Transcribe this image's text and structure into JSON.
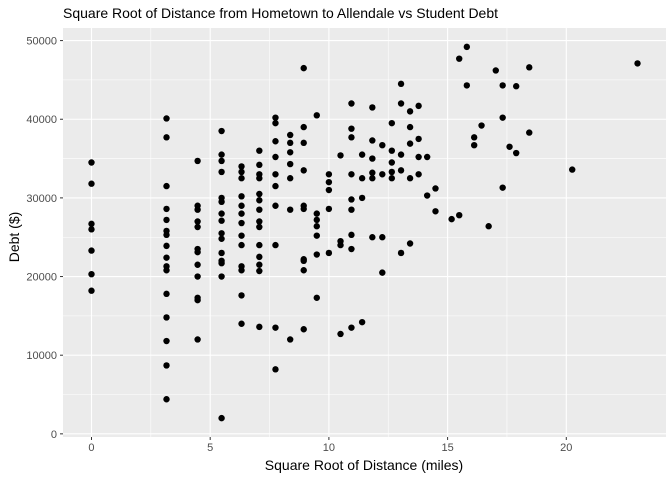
{
  "chart_data": {
    "type": "scatter",
    "title": "Square Root of Distance from Hometown to Allendale vs Student Debt",
    "xlabel": "Square Root of Distance (miles)",
    "ylabel": "Debt ($)",
    "xlim": [
      -1.2,
      24.2
    ],
    "ylim": [
      -400,
      51600
    ],
    "x_ticks": [
      0,
      5,
      10,
      15,
      20
    ],
    "x_tick_labels": [
      "0",
      "5",
      "10",
      "15",
      "20"
    ],
    "y_ticks": [
      0,
      10000,
      20000,
      30000,
      40000,
      50000
    ],
    "y_tick_labels": [
      "0",
      "10000",
      "20000",
      "30000",
      "40000",
      "50000"
    ],
    "grid": true,
    "colors": {
      "panel": "#ebebeb",
      "grid_major": "#ffffff",
      "point": "#000000",
      "tick_text": "#4d4d4d"
    },
    "points": [
      [
        0,
        34500
      ],
      [
        0,
        31800
      ],
      [
        0,
        26700
      ],
      [
        0,
        26000
      ],
      [
        0,
        23300
      ],
      [
        0,
        20300
      ],
      [
        0,
        18200
      ],
      [
        3.16,
        40100
      ],
      [
        3.16,
        37700
      ],
      [
        3.16,
        31500
      ],
      [
        3.16,
        28600
      ],
      [
        3.16,
        27200
      ],
      [
        3.16,
        25800
      ],
      [
        3.16,
        25300
      ],
      [
        3.16,
        23900
      ],
      [
        3.16,
        22400
      ],
      [
        3.16,
        21300
      ],
      [
        3.16,
        20800
      ],
      [
        3.16,
        17800
      ],
      [
        3.16,
        14800
      ],
      [
        3.16,
        11800
      ],
      [
        3.16,
        8700
      ],
      [
        3.16,
        4400
      ],
      [
        4.47,
        34700
      ],
      [
        4.47,
        29000
      ],
      [
        4.47,
        28500
      ],
      [
        4.47,
        27000
      ],
      [
        4.47,
        26300
      ],
      [
        4.47,
        23500
      ],
      [
        4.47,
        23100
      ],
      [
        4.47,
        21500
      ],
      [
        4.47,
        20000
      ],
      [
        4.47,
        17300
      ],
      [
        4.47,
        17000
      ],
      [
        4.47,
        12000
      ],
      [
        5.48,
        38500
      ],
      [
        5.48,
        35500
      ],
      [
        5.48,
        34700
      ],
      [
        5.48,
        33300
      ],
      [
        5.48,
        30000
      ],
      [
        5.48,
        29500
      ],
      [
        5.48,
        28000
      ],
      [
        5.48,
        27100
      ],
      [
        5.48,
        25500
      ],
      [
        5.48,
        24800
      ],
      [
        5.48,
        23000
      ],
      [
        5.48,
        22000
      ],
      [
        5.48,
        21700
      ],
      [
        5.48,
        20000
      ],
      [
        5.48,
        2000
      ],
      [
        6.32,
        34000
      ],
      [
        6.32,
        33300
      ],
      [
        6.32,
        32500
      ],
      [
        6.32,
        30200
      ],
      [
        6.32,
        29000
      ],
      [
        6.32,
        28000
      ],
      [
        6.32,
        26800
      ],
      [
        6.32,
        25200
      ],
      [
        6.32,
        24000
      ],
      [
        6.32,
        21300
      ],
      [
        6.32,
        20800
      ],
      [
        6.32,
        17600
      ],
      [
        6.32,
        14000
      ],
      [
        7.07,
        36000
      ],
      [
        7.07,
        34200
      ],
      [
        7.07,
        33000
      ],
      [
        7.07,
        32500
      ],
      [
        7.07,
        30500
      ],
      [
        7.07,
        29700
      ],
      [
        7.07,
        28500
      ],
      [
        7.07,
        27000
      ],
      [
        7.07,
        26300
      ],
      [
        7.07,
        24000
      ],
      [
        7.07,
        22500
      ],
      [
        7.07,
        21500
      ],
      [
        7.07,
        20700
      ],
      [
        7.07,
        13600
      ],
      [
        7.75,
        40200
      ],
      [
        7.75,
        39500
      ],
      [
        7.75,
        37200
      ],
      [
        7.75,
        35200
      ],
      [
        7.75,
        33000
      ],
      [
        7.75,
        31500
      ],
      [
        7.75,
        29000
      ],
      [
        7.75,
        24000
      ],
      [
        7.75,
        13500
      ],
      [
        7.75,
        8200
      ],
      [
        8.37,
        38000
      ],
      [
        8.37,
        37000
      ],
      [
        8.37,
        35800
      ],
      [
        8.37,
        34300
      ],
      [
        8.37,
        32500
      ],
      [
        8.37,
        28500
      ],
      [
        8.37,
        12000
      ],
      [
        8.94,
        46500
      ],
      [
        8.94,
        39000
      ],
      [
        8.94,
        37000
      ],
      [
        8.94,
        33500
      ],
      [
        8.94,
        29000
      ],
      [
        8.94,
        28600
      ],
      [
        8.94,
        22200
      ],
      [
        8.94,
        22000
      ],
      [
        8.94,
        20800
      ],
      [
        8.94,
        13300
      ],
      [
        9.49,
        40500
      ],
      [
        9.49,
        28000
      ],
      [
        9.49,
        27200
      ],
      [
        9.49,
        26400
      ],
      [
        9.49,
        25200
      ],
      [
        9.49,
        22800
      ],
      [
        9.49,
        17300
      ],
      [
        10,
        33000
      ],
      [
        10,
        32000
      ],
      [
        10,
        31000
      ],
      [
        10,
        28600
      ],
      [
        10,
        23000
      ],
      [
        10.49,
        35400
      ],
      [
        10.49,
        24500
      ],
      [
        10.49,
        24000
      ],
      [
        10.49,
        12700
      ],
      [
        10.95,
        42000
      ],
      [
        10.95,
        38800
      ],
      [
        10.95,
        37700
      ],
      [
        10.95,
        33000
      ],
      [
        10.95,
        29800
      ],
      [
        10.95,
        28500
      ],
      [
        10.95,
        25300
      ],
      [
        10.95,
        23500
      ],
      [
        10.95,
        13500
      ],
      [
        11.4,
        35500
      ],
      [
        11.4,
        32500
      ],
      [
        11.4,
        30000
      ],
      [
        11.4,
        14200
      ],
      [
        11.83,
        41500
      ],
      [
        11.83,
        37300
      ],
      [
        11.83,
        35000
      ],
      [
        11.83,
        33200
      ],
      [
        11.83,
        32500
      ],
      [
        11.83,
        25000
      ],
      [
        12.25,
        36700
      ],
      [
        12.25,
        33000
      ],
      [
        12.25,
        25000
      ],
      [
        12.25,
        20500
      ],
      [
        12.65,
        39500
      ],
      [
        12.65,
        36000
      ],
      [
        12.65,
        34500
      ],
      [
        12.65,
        33300
      ],
      [
        12.65,
        32500
      ],
      [
        13.04,
        44500
      ],
      [
        13.04,
        42000
      ],
      [
        13.04,
        35500
      ],
      [
        13.04,
        33500
      ],
      [
        13.04,
        23000
      ],
      [
        13.42,
        41000
      ],
      [
        13.42,
        39000
      ],
      [
        13.42,
        36900
      ],
      [
        13.42,
        32500
      ],
      [
        13.42,
        24200
      ],
      [
        13.78,
        41700
      ],
      [
        13.78,
        37500
      ],
      [
        13.78,
        35200
      ],
      [
        13.78,
        33000
      ],
      [
        14.14,
        35200
      ],
      [
        14.14,
        30300
      ],
      [
        14.49,
        31200
      ],
      [
        14.49,
        28300
      ],
      [
        15.17,
        27300
      ],
      [
        15.49,
        47700
      ],
      [
        15.49,
        27800
      ],
      [
        15.81,
        49200
      ],
      [
        15.81,
        44300
      ],
      [
        16.12,
        37700
      ],
      [
        16.12,
        36700
      ],
      [
        16.43,
        39200
      ],
      [
        16.73,
        26400
      ],
      [
        17.03,
        46200
      ],
      [
        17.32,
        44300
      ],
      [
        17.32,
        40200
      ],
      [
        17.32,
        31300
      ],
      [
        17.61,
        36500
      ],
      [
        17.89,
        44200
      ],
      [
        17.89,
        35700
      ],
      [
        18.44,
        46600
      ],
      [
        18.44,
        38300
      ],
      [
        20.25,
        33600
      ],
      [
        23,
        47100
      ]
    ]
  }
}
